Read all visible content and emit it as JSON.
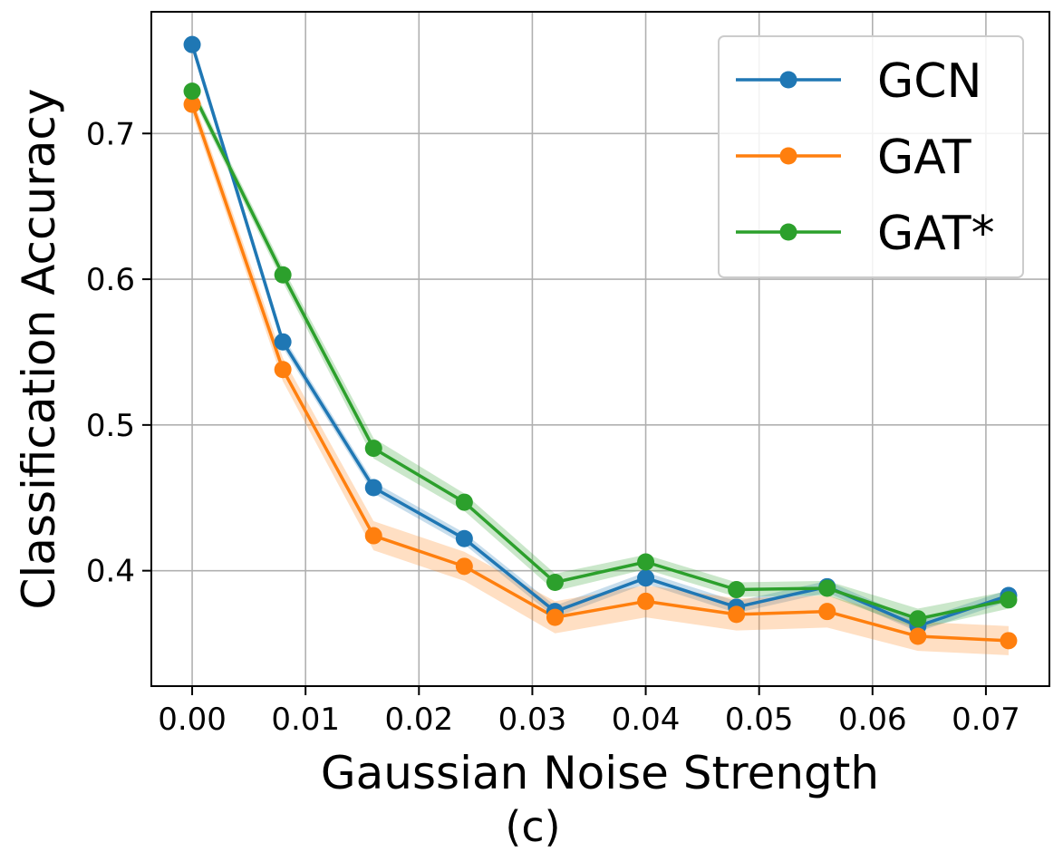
{
  "chart_data": {
    "type": "line",
    "caption": "(c)",
    "xlabel": "Gaussian Noise Strength",
    "ylabel": "Classification Accuracy",
    "xlim": [
      -0.0036,
      0.0756
    ],
    "ylim": [
      0.3208,
      0.7835
    ],
    "x": [
      0.0,
      0.008,
      0.016,
      0.024,
      0.032,
      0.04,
      0.048,
      0.056,
      0.064,
      0.072
    ],
    "xticks": [
      0.0,
      0.01,
      0.02,
      0.03,
      0.04,
      0.05,
      0.06,
      0.07
    ],
    "xtick_labels": [
      "0.00",
      "0.01",
      "0.02",
      "0.03",
      "0.04",
      "0.05",
      "0.06",
      "0.07"
    ],
    "yticks": [
      0.4,
      0.5,
      0.6,
      0.7
    ],
    "ytick_labels": [
      "0.4",
      "0.5",
      "0.6",
      "0.7"
    ],
    "grid": true,
    "legend_position": "top-right",
    "series": [
      {
        "name": "GCN",
        "color": "#1f77b4",
        "values": [
          0.761,
          0.557,
          0.457,
          0.422,
          0.372,
          0.395,
          0.375,
          0.389,
          0.362,
          0.383
        ],
        "band": [
          0.004,
          0.004,
          0.004,
          0.004,
          0.004,
          0.004,
          0.004,
          0.004,
          0.004,
          0.004
        ]
      },
      {
        "name": "GAT",
        "color": "#ff7f0e",
        "values": [
          0.72,
          0.538,
          0.424,
          0.403,
          0.368,
          0.379,
          0.37,
          0.372,
          0.355,
          0.352
        ],
        "band": [
          0.006,
          0.008,
          0.01,
          0.01,
          0.011,
          0.011,
          0.011,
          0.011,
          0.01,
          0.01
        ]
      },
      {
        "name": "GAT*",
        "color": "#2ca02c",
        "values": [
          0.729,
          0.603,
          0.484,
          0.447,
          0.392,
          0.406,
          0.387,
          0.388,
          0.367,
          0.38
        ],
        "band": [
          0.004,
          0.005,
          0.007,
          0.006,
          0.006,
          0.005,
          0.005,
          0.005,
          0.007,
          0.006
        ]
      }
    ]
  }
}
